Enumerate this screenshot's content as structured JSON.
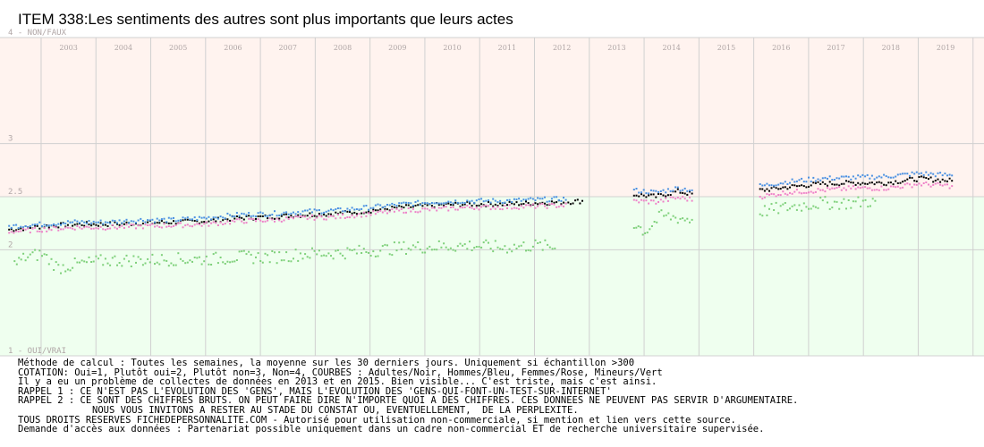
{
  "title": "ITEM 338:Les sentiments des autres sont plus importants que leurs actes",
  "notes": [
    "Méthode de calcul : Toutes les semaines, la moyenne sur les 30 derniers jours. Uniquement si échantillon >300",
    "COTATION: Oui=1, Plutôt oui=2, Plutôt non=3, Non=4, COURBES : Adultes/Noir, Hommes/Bleu, Femmes/Rose, Mineurs/Vert",
    "Il y a eu un problème de collectes de données en 2013 et en 2015. Bien visible... C'est triste, mais c'est ainsi.",
    "RAPPEL 1 : CE N'EST PAS L'EVOLUTION DES 'GENS', MAIS L'EVOLUTION DES 'GENS-QUI-FONT-UN-TEST-SUR-INTERNET'",
    "RAPPEL 2 : CE SONT DES CHIFFRES BRUTS. ON PEUT FAIRE DIRE N'IMPORTE QUOI A DES CHIFFRES. CES DONNEES NE PEUVENT PAS SERVIR D'ARGUMENTAIRE.",
    "NOUS VOUS INVITONS A RESTER AU STADE DU CONSTAT OU, EVENTUELLEMENT,  DE LA PERPLEXITE.",
    "TOUS DROITS RESERVES FICHEDEPERSONNALITE.COM - Autorisé pour utilisation non-commerciale, si mention et lien vers cette source.",
    "Demande d'accès aux données : Partenariat possible uniquement dans un cadre non-commercial ET de recherche universitaire supervisée."
  ],
  "chart_data": {
    "type": "scatter",
    "title": "ITEM 338:Les sentiments des autres sont plus importants que leurs actes",
    "x_ticks": [
      "2003",
      "2004",
      "2005",
      "2006",
      "2007",
      "2008",
      "2009",
      "2010",
      "2011",
      "2012",
      "2013",
      "2014",
      "2015",
      "2016",
      "2017",
      "2018",
      "2019"
    ],
    "y_ticks": [
      {
        "value": 4,
        "label": "4 - NON/FAUX"
      },
      {
        "value": 3,
        "label": "3"
      },
      {
        "value": 2.5,
        "label": "2.5"
      },
      {
        "value": 2,
        "label": "2"
      },
      {
        "value": 1,
        "label": "1 - OUI/VRAI"
      }
    ],
    "ylim": [
      1,
      4
    ],
    "xlim": [
      2002.25,
      2020.2
    ],
    "split_value": 2.5,
    "colors": {
      "upper_band": "#fff3ef",
      "lower_band": "#efffef",
      "grid": "#d0d0d0",
      "tick_label": "#b0a6a6",
      "adultes": "#000000",
      "hommes": "#4a90e2",
      "femmes": "#ee82c8",
      "mineurs": "#7ed07a"
    },
    "series": [
      {
        "name": "Adultes",
        "color_key": "adultes",
        "points": [
          [
            2002.4,
            2.19
          ],
          [
            2003.0,
            2.22
          ],
          [
            2003.6,
            2.24
          ],
          [
            2004.2,
            2.24
          ],
          [
            2004.8,
            2.25
          ],
          [
            2005.4,
            2.26
          ],
          [
            2006.0,
            2.27
          ],
          [
            2006.6,
            2.3
          ],
          [
            2007.2,
            2.31
          ],
          [
            2007.8,
            2.33
          ],
          [
            2008.4,
            2.34
          ],
          [
            2009.0,
            2.37
          ],
          [
            2009.6,
            2.4
          ],
          [
            2010.2,
            2.42
          ],
          [
            2010.8,
            2.43
          ],
          [
            2011.4,
            2.43
          ],
          [
            2012.0,
            2.44
          ],
          [
            2012.6,
            2.45
          ],
          [
            2012.9,
            2.46
          ],
          [
            2013.8,
            2.52
          ],
          [
            2014.2,
            2.5
          ],
          [
            2014.6,
            2.55
          ],
          [
            2014.9,
            2.52
          ],
          [
            2016.1,
            2.56
          ],
          [
            2016.6,
            2.59
          ],
          [
            2017.2,
            2.62
          ],
          [
            2017.8,
            2.63
          ],
          [
            2018.4,
            2.63
          ],
          [
            2019.0,
            2.67
          ],
          [
            2019.6,
            2.65
          ]
        ]
      },
      {
        "name": "Hommes",
        "color_key": "hommes",
        "points": [
          [
            2002.4,
            2.22
          ],
          [
            2003.0,
            2.24
          ],
          [
            2003.6,
            2.26
          ],
          [
            2004.2,
            2.26
          ],
          [
            2004.8,
            2.28
          ],
          [
            2005.4,
            2.28
          ],
          [
            2006.0,
            2.3
          ],
          [
            2006.6,
            2.33
          ],
          [
            2007.2,
            2.34
          ],
          [
            2007.8,
            2.36
          ],
          [
            2008.4,
            2.37
          ],
          [
            2009.0,
            2.4
          ],
          [
            2009.6,
            2.43
          ],
          [
            2010.2,
            2.45
          ],
          [
            2010.8,
            2.46
          ],
          [
            2011.4,
            2.46
          ],
          [
            2012.0,
            2.47
          ],
          [
            2012.6,
            2.48
          ],
          [
            2013.8,
            2.56
          ],
          [
            2014.2,
            2.54
          ],
          [
            2014.6,
            2.58
          ],
          [
            2014.9,
            2.56
          ],
          [
            2016.1,
            2.6
          ],
          [
            2016.6,
            2.64
          ],
          [
            2017.2,
            2.67
          ],
          [
            2017.8,
            2.68
          ],
          [
            2018.4,
            2.69
          ],
          [
            2019.0,
            2.72
          ],
          [
            2019.6,
            2.7
          ]
        ]
      },
      {
        "name": "Femmes",
        "color_key": "femmes",
        "points": [
          [
            2002.4,
            2.17
          ],
          [
            2003.0,
            2.19
          ],
          [
            2003.6,
            2.21
          ],
          [
            2004.2,
            2.21
          ],
          [
            2004.8,
            2.22
          ],
          [
            2005.4,
            2.23
          ],
          [
            2006.0,
            2.24
          ],
          [
            2006.6,
            2.27
          ],
          [
            2007.2,
            2.28
          ],
          [
            2007.8,
            2.3
          ],
          [
            2008.4,
            2.31
          ],
          [
            2009.0,
            2.34
          ],
          [
            2009.6,
            2.37
          ],
          [
            2010.2,
            2.38
          ],
          [
            2010.8,
            2.4
          ],
          [
            2011.4,
            2.4
          ],
          [
            2012.0,
            2.41
          ],
          [
            2012.6,
            2.42
          ],
          [
            2013.8,
            2.46
          ],
          [
            2014.2,
            2.45
          ],
          [
            2014.6,
            2.49
          ],
          [
            2014.9,
            2.47
          ],
          [
            2016.1,
            2.5
          ],
          [
            2016.6,
            2.54
          ],
          [
            2017.2,
            2.56
          ],
          [
            2017.8,
            2.58
          ],
          [
            2018.4,
            2.58
          ],
          [
            2019.0,
            2.62
          ],
          [
            2019.6,
            2.6
          ]
        ]
      },
      {
        "name": "Mineurs",
        "color_key": "mineurs",
        "points": [
          [
            2002.5,
            1.86
          ],
          [
            2002.7,
            1.93
          ],
          [
            2003.0,
            1.96
          ],
          [
            2003.3,
            1.83
          ],
          [
            2003.6,
            1.86
          ],
          [
            2004.2,
            1.9
          ],
          [
            2004.8,
            1.9
          ],
          [
            2005.4,
            1.91
          ],
          [
            2006.0,
            1.91
          ],
          [
            2006.6,
            1.93
          ],
          [
            2007.2,
            1.93
          ],
          [
            2007.8,
            1.96
          ],
          [
            2008.4,
            1.97
          ],
          [
            2009.0,
            1.99
          ],
          [
            2009.6,
            2.02
          ],
          [
            2010.2,
            2.03
          ],
          [
            2010.8,
            2.04
          ],
          [
            2011.4,
            2.02
          ],
          [
            2012.0,
            2.04
          ],
          [
            2012.4,
            2.02
          ],
          [
            2013.8,
            2.25
          ],
          [
            2014.0,
            2.17
          ],
          [
            2014.3,
            2.32
          ],
          [
            2014.6,
            2.3
          ],
          [
            2014.9,
            2.28
          ],
          [
            2016.1,
            2.36
          ],
          [
            2016.6,
            2.4
          ],
          [
            2017.2,
            2.44
          ],
          [
            2017.8,
            2.44
          ],
          [
            2018.2,
            2.46
          ]
        ]
      }
    ]
  }
}
